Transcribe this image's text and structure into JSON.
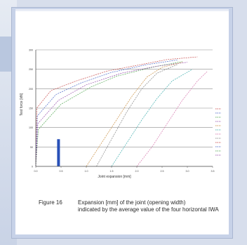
{
  "chart_data": {
    "type": "line",
    "xlabel": "Joint expansion [mm]",
    "ylabel": "Test force [kN]",
    "xlim": [
      0.0,
      3.5
    ],
    "ylim": [
      0,
      300
    ],
    "x_ticks": [
      "0.0",
      "0.5",
      "1.0",
      "1.5",
      "2.0",
      "2.5",
      "3.0",
      "3.5"
    ],
    "y_ticks": [
      "0",
      "50",
      "100",
      "150",
      "200",
      "250",
      "300"
    ],
    "x_tick_values": [
      0.0,
      0.5,
      1.0,
      1.5,
      2.0,
      2.5,
      3.0,
      3.5
    ],
    "y_tick_values": [
      0,
      50,
      100,
      150,
      200,
      250,
      300
    ],
    "grid": "horizontal",
    "legend_position": "right",
    "series": [
      {
        "color": "#c03030",
        "points": [
          [
            0.0,
            0
          ],
          [
            0.02,
            150
          ],
          [
            0.3,
            195
          ],
          [
            0.8,
            220
          ],
          [
            1.4,
            245
          ],
          [
            2.0,
            260
          ],
          [
            2.6,
            275
          ],
          [
            3.2,
            282
          ]
        ]
      },
      {
        "color": "#3050c0",
        "points": [
          [
            0.0,
            0
          ],
          [
            0.03,
            130
          ],
          [
            0.4,
            185
          ],
          [
            0.9,
            215
          ],
          [
            1.5,
            242
          ],
          [
            2.2,
            262
          ],
          [
            2.8,
            274
          ]
        ]
      },
      {
        "color": "#3a9a3a",
        "points": [
          [
            0.0,
            0
          ],
          [
            0.05,
            95
          ],
          [
            0.5,
            160
          ],
          [
            1.1,
            205
          ],
          [
            1.6,
            232
          ],
          [
            2.3,
            255
          ],
          [
            2.9,
            270
          ]
        ]
      },
      {
        "color": "#8a3aa0",
        "points": [
          [
            0.0,
            0
          ],
          [
            0.04,
            110
          ],
          [
            0.45,
            170
          ],
          [
            1.0,
            210
          ],
          [
            1.7,
            240
          ],
          [
            2.4,
            258
          ],
          [
            3.0,
            268
          ]
        ]
      },
      {
        "color": "#c07a20",
        "points": [
          [
            1.0,
            0
          ],
          [
            1.3,
            60
          ],
          [
            1.6,
            120
          ],
          [
            1.9,
            180
          ],
          [
            2.2,
            230
          ],
          [
            2.5,
            255
          ],
          [
            2.9,
            268
          ]
        ]
      },
      {
        "color": "#20a0a0",
        "points": [
          [
            1.5,
            0
          ],
          [
            1.8,
            60
          ],
          [
            2.1,
            120
          ],
          [
            2.4,
            175
          ],
          [
            2.7,
            220
          ],
          [
            3.1,
            250
          ]
        ]
      },
      {
        "color": "#d060a0",
        "points": [
          [
            2.0,
            0
          ],
          [
            2.3,
            50
          ],
          [
            2.6,
            110
          ],
          [
            2.9,
            170
          ],
          [
            3.2,
            220
          ],
          [
            3.4,
            245
          ]
        ]
      },
      {
        "color": "#707070",
        "points": [
          [
            1.2,
            0
          ],
          [
            1.5,
            70
          ],
          [
            1.8,
            140
          ],
          [
            2.1,
            200
          ],
          [
            2.4,
            240
          ],
          [
            2.8,
            262
          ]
        ]
      }
    ],
    "highlight_bar": {
      "x": 0.45,
      "from": 0,
      "to": 70,
      "color": "#2850b8"
    },
    "legend_entries_count": 12
  },
  "caption": {
    "figure_number": "Figure 16",
    "line1": "Expansion [mm] of the joint (opening width)",
    "line2": "indicated by the average value of the four horizontal IWA"
  },
  "colors": {
    "page_bg": "#d7deec",
    "card_bg": "#c7d2e8",
    "grid": "#8c8c8c",
    "axis": "#555555"
  }
}
